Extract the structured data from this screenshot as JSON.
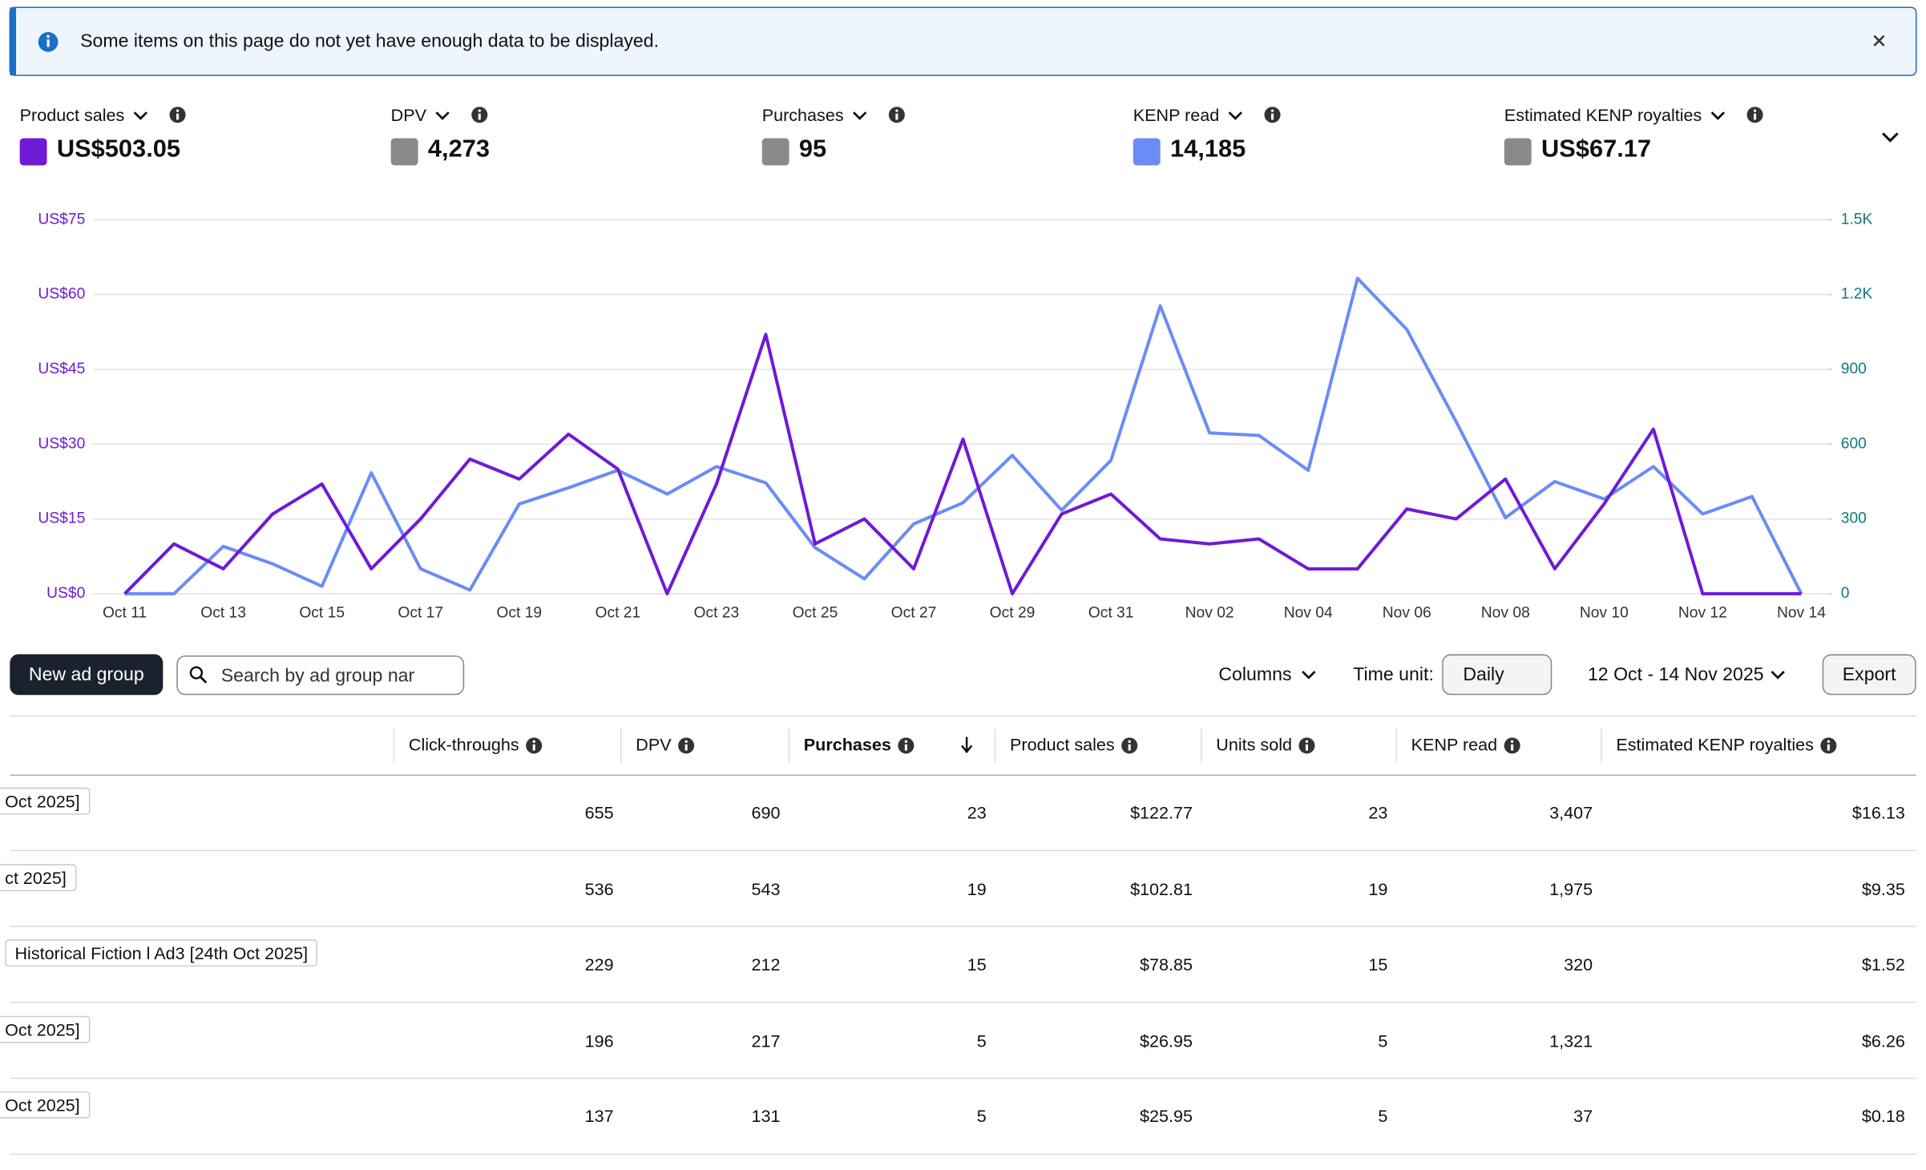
{
  "banner": {
    "text": "Some items on this page do not yet have enough data to be displayed."
  },
  "metrics": [
    {
      "label": "Product sales",
      "value": "US$503.05",
      "color": "#6f1ad6"
    },
    {
      "label": "DPV",
      "value": "4,273",
      "color": "#8a8a8a"
    },
    {
      "label": "Purchases",
      "value": "95",
      "color": "#8a8a8a"
    },
    {
      "label": "KENP read",
      "value": "14,185",
      "color": "#6b8cf5"
    },
    {
      "label": "Estimated KENP royalties",
      "value": "US$67.17",
      "color": "#8a8a8a"
    }
  ],
  "chart_data": {
    "type": "line",
    "categories": [
      "Oct 11",
      null,
      "Oct 13",
      null,
      "Oct 15",
      null,
      "Oct 17",
      null,
      "Oct 19",
      null,
      "Oct 21",
      null,
      "Oct 23",
      null,
      "Oct 25",
      null,
      "Oct 27",
      null,
      "Oct 29",
      null,
      "Oct 31",
      null,
      "Nov 02",
      null,
      "Nov 04",
      null,
      "Nov 06",
      null,
      "Nov 08",
      null,
      "Nov 10",
      null,
      "Nov 12",
      null,
      "Nov 14"
    ],
    "series": [
      {
        "name": "Product sales",
        "color": "#6f1ad6",
        "values": [
          0,
          10,
          5,
          16,
          22,
          5,
          15,
          27,
          23,
          32,
          25,
          0,
          22,
          52,
          10,
          15,
          5,
          31,
          0,
          16,
          20,
          11,
          10,
          11,
          5,
          5,
          17,
          15,
          23,
          5,
          18,
          33,
          0,
          0,
          0
        ]
      },
      {
        "name": "KENP read",
        "color": "#6b8cf5",
        "axis": "y2",
        "values": [
          0,
          0,
          190,
          120,
          30,
          485,
          100,
          15,
          360,
          425,
          495,
          400,
          510,
          445,
          185,
          60,
          280,
          365,
          555,
          335,
          535,
          1155,
          645,
          635,
          495,
          1265,
          1060,
          690,
          305,
          450,
          380,
          510,
          320,
          390,
          0
        ]
      }
    ],
    "ylim": [
      0,
      75
    ],
    "yticks": [
      {
        "value": 0,
        "label": "US$0"
      },
      {
        "value": 15,
        "label": "US$15"
      },
      {
        "value": 30,
        "label": "US$30"
      },
      {
        "value": 45,
        "label": "US$45"
      },
      {
        "value": 60,
        "label": "US$60"
      },
      {
        "value": 75,
        "label": "US$75"
      }
    ],
    "y2lim": [
      0,
      1500
    ],
    "y2ticks": [
      0,
      300,
      600,
      900,
      {
        "value": 1200,
        "label": "1.2K"
      },
      {
        "value": 1500,
        "label": "1.5K"
      }
    ],
    "grid": true
  },
  "toolbar": {
    "new_button": "New ad group",
    "search_placeholder": "Search by ad group nar",
    "columns": "Columns",
    "time_unit_label": "Time unit:",
    "time_unit": "Daily",
    "date_range": "12 Oct - 14 Nov 2025",
    "export": "Export"
  },
  "table": {
    "headers": [
      "Click-throughs",
      "DPV",
      "Purchases",
      "Product sales",
      "Units sold",
      "KENP read",
      "Estimated KENP royalties"
    ],
    "rows": [
      [
        "Oct 2025]",
        "655",
        "690",
        "23",
        "$122.77",
        "23",
        "3,407",
        "$16.13"
      ],
      [
        "ct 2025]",
        "536",
        "543",
        "19",
        "$102.81",
        "19",
        "1,975",
        "$9.35"
      ],
      [
        "Historical Fiction l Ad3 [24th Oct 2025]",
        "229",
        "212",
        "15",
        "$78.85",
        "15",
        "320",
        "$1.52"
      ],
      [
        "Oct 2025]",
        "196",
        "217",
        "5",
        "$26.95",
        "5",
        "1,321",
        "$6.26"
      ],
      [
        "Oct 2025]",
        "137",
        "131",
        "5",
        "$25.95",
        "5",
        "37",
        "$0.18"
      ]
    ]
  }
}
